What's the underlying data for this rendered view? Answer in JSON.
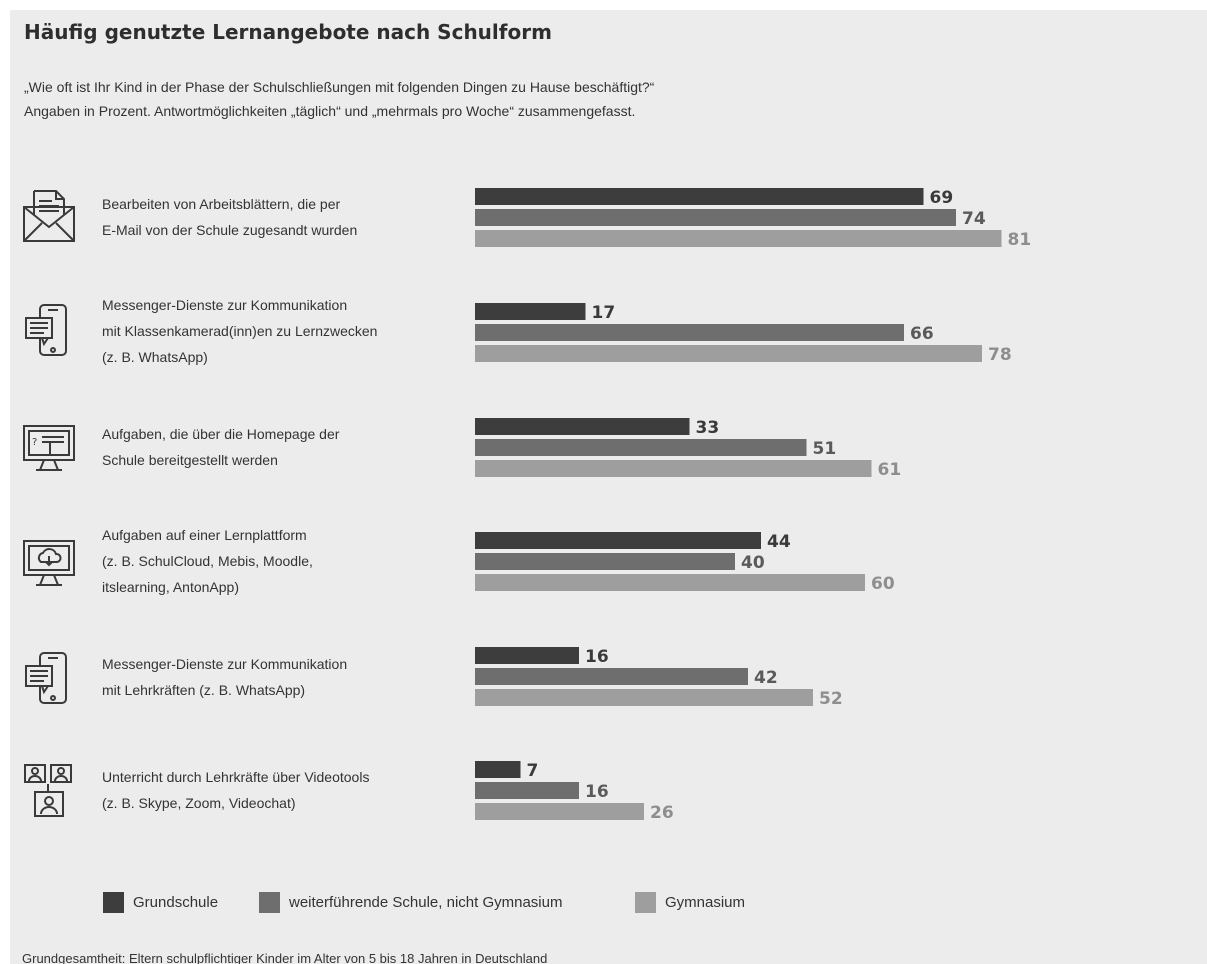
{
  "title": "Häufig genutzte Lernangebote nach Schulform",
  "subtitle_line1": "„Wie oft ist Ihr Kind in der Phase der Schulschließungen mit folgenden Dingen zu Hause beschäftigt?“",
  "subtitle_line2": "Angaben in Prozent. Antwortmöglichkeiten „täglich“ und „mehrmals pro Woche“ zusammengefasst.",
  "footer": "Grundgesamtheit: Eltern schulpflichtiger Kinder im Alter von 5 bis 18 Jahren in Deutschland",
  "categories": [
    {
      "label": "Bearbeiten von Arbeitsblättern, die per\nE-Mail von der Schule zugesandt wurden",
      "icon": "email-icon"
    },
    {
      "label": "Messenger-Dienste zur Kommunikation\nmit Klassenkamerad(inn)en zu Lernzwecken\n(z. B. WhatsApp)",
      "icon": "smartphone-chat-icon"
    },
    {
      "label": "Aufgaben, die über die Homepage der\nSchule bereitgestellt werden",
      "icon": "monitor-homepage-icon"
    },
    {
      "label": "Aufgaben auf einer Lernplattform\n(z. B. SchulCloud, Mebis, Moodle,\nitslearning, AntonApp)",
      "icon": "monitor-cloud-icon"
    },
    {
      "label": "Messenger-Dienste zur Kommunikation\nmit Lehrkräften (z. B. WhatsApp)",
      "icon": "smartphone-chat-icon"
    },
    {
      "label": "Unterricht durch Lehrkräfte über Videotools\n(z. B. Skype, Zoom, Videochat)",
      "icon": "video-conference-icon"
    }
  ],
  "legend": [
    {
      "label": "Grundschule",
      "color": "#3d3d3d"
    },
    {
      "label": "weiterführende Schule, nicht Gymnasium",
      "color": "#6e6e6e"
    },
    {
      "label": "Gymnasium",
      "color": "#9e9e9e"
    }
  ],
  "chart_data": {
    "type": "bar",
    "orientation": "horizontal",
    "unit": "Prozent",
    "categories": [
      "Bearbeiten von Arbeitsblättern, die per E-Mail von der Schule zugesandt wurden",
      "Messenger-Dienste zur Kommunikation mit Klassenkamerad(inn)en zu Lernzwecken (z. B. WhatsApp)",
      "Aufgaben, die über die Homepage der Schule bereitgestellt werden",
      "Aufgaben auf einer Lernplattform (z. B. SchulCloud, Mebis, Moodle, itslearning, AntonApp)",
      "Messenger-Dienste zur Kommunikation mit Lehrkräften (z. B. WhatsApp)",
      "Unterricht durch Lehrkräfte über Videotools (z. B. Skype, Zoom, Videochat)"
    ],
    "series": [
      {
        "name": "Grundschule",
        "color": "#3d3d3d",
        "label_color": "#3a3a3a",
        "values": [
          69,
          17,
          33,
          44,
          16,
          7
        ]
      },
      {
        "name": "weiterführende Schule, nicht Gymnasium",
        "color": "#6e6e6e",
        "label_color": "#5a5a5a",
        "values": [
          74,
          66,
          51,
          40,
          42,
          16
        ]
      },
      {
        "name": "Gymnasium",
        "color": "#9e9e9e",
        "label_color": "#8e8e8e",
        "values": [
          81,
          78,
          61,
          60,
          52,
          26
        ]
      }
    ],
    "xlim": [
      0,
      100
    ],
    "grid": false,
    "legend_position": "bottom"
  }
}
